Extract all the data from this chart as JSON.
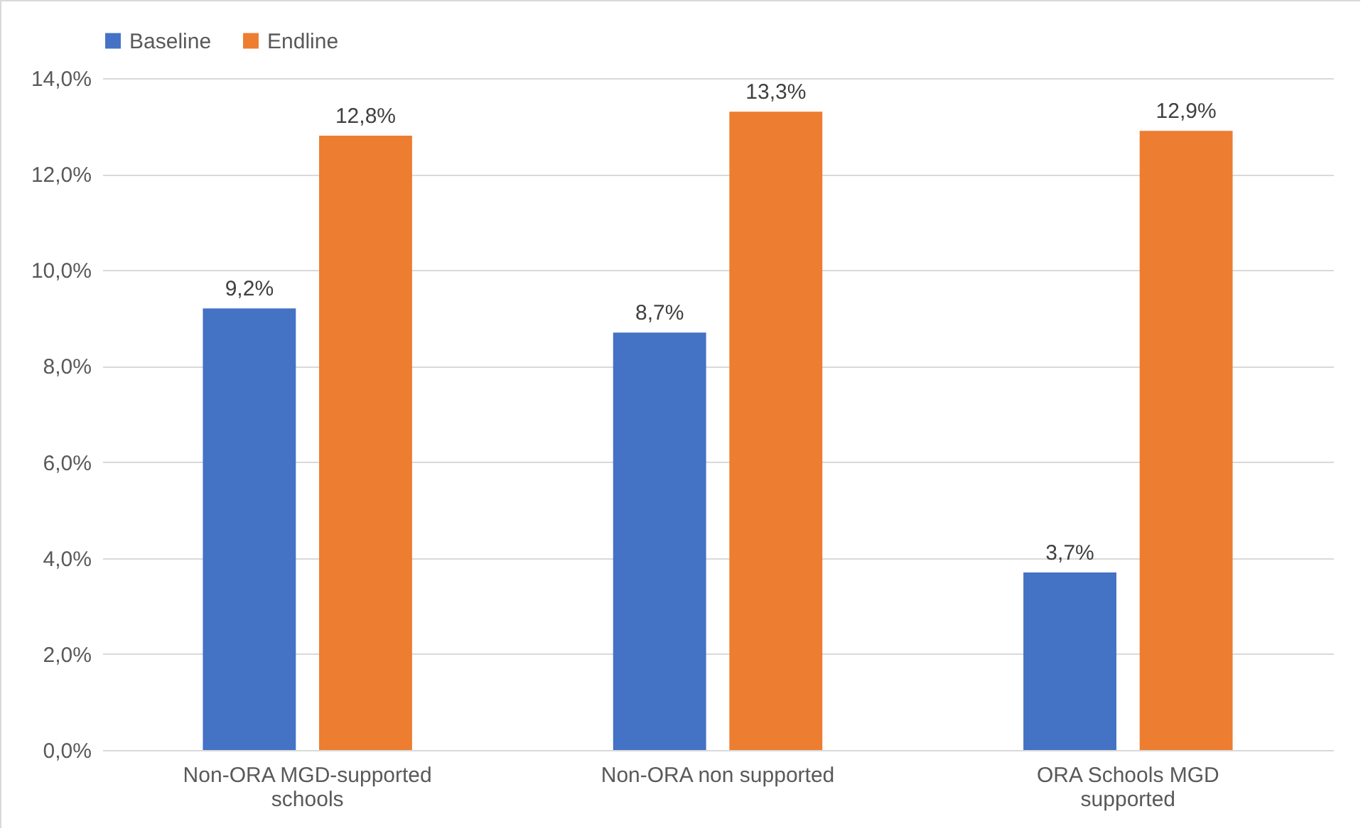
{
  "chart_data": {
    "type": "bar",
    "categories": [
      "Non-ORA MGD-supported schools",
      "Non-ORA non supported",
      "ORA Schools MGD supported"
    ],
    "series": [
      {
        "name": "Baseline",
        "color": "#4472c4",
        "values": [
          9.2,
          8.7,
          3.7
        ],
        "value_labels": [
          "9,2%",
          "8,7%",
          "3,7%"
        ]
      },
      {
        "name": "Endline",
        "color": "#ed7d31",
        "values": [
          12.8,
          13.3,
          12.9
        ],
        "value_labels": [
          "12,8%",
          "13,3%",
          "12,9%"
        ]
      }
    ],
    "ylim": [
      0,
      14
    ],
    "yticks": [
      {
        "value": 0,
        "label": "0,0%"
      },
      {
        "value": 2,
        "label": "2,0%"
      },
      {
        "value": 4,
        "label": "4,0%"
      },
      {
        "value": 6,
        "label": "6,0%"
      },
      {
        "value": 8,
        "label": "8,0%"
      },
      {
        "value": 10,
        "label": "10,0%"
      },
      {
        "value": 12,
        "label": "12,0%"
      },
      {
        "value": 14,
        "label": "14,0%"
      }
    ],
    "grid": "y",
    "legend": "top"
  }
}
